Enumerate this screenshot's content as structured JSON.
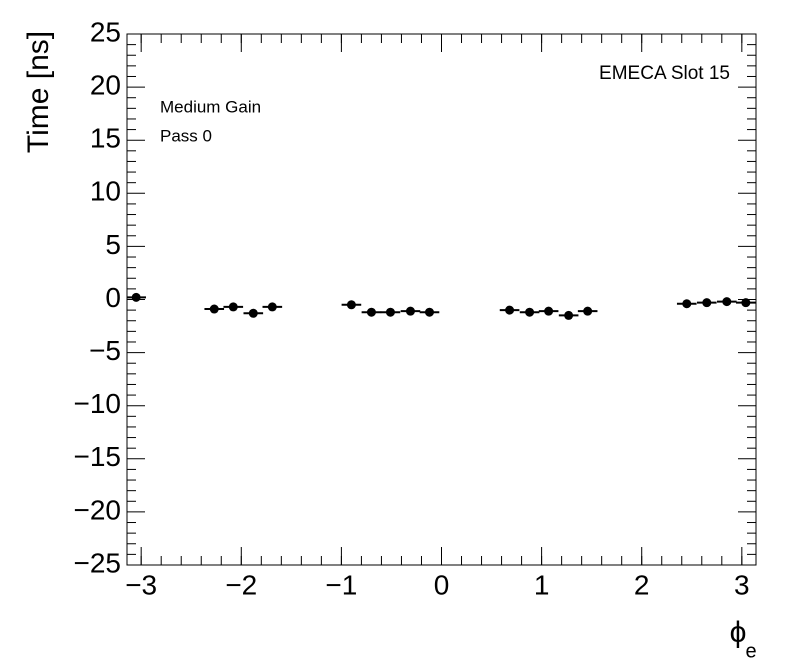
{
  "chart_data": {
    "type": "scatter",
    "title": "EMECA Slot 15",
    "annotations": [
      "Medium Gain",
      "Pass 0"
    ],
    "xlabel": {
      "symbol": "ϕ",
      "subscript": "e"
    },
    "ylabel": "Time [ns]",
    "x": [
      -3.05,
      -2.27,
      -2.08,
      -1.88,
      -1.69,
      -0.9,
      -0.7,
      -0.51,
      -0.31,
      -0.12,
      0.68,
      0.88,
      1.07,
      1.27,
      1.46,
      2.45,
      2.65,
      2.85,
      3.04
    ],
    "x_error": 0.098,
    "series": [
      {
        "name": "Time",
        "color": "#000000",
        "values": [
          0.2,
          -0.9,
          -0.7,
          -1.3,
          -0.7,
          -0.5,
          -1.2,
          -1.2,
          -1.1,
          -1.2,
          -1.0,
          -1.2,
          -1.1,
          -1.5,
          -1.1,
          -0.4,
          -0.3,
          -0.2,
          -0.3
        ]
      }
    ],
    "xlim": [
      -3.1416,
      3.1416
    ],
    "ylim": [
      -25,
      25
    ],
    "xticks": [
      {
        "value": -3,
        "label": "−3"
      },
      {
        "value": -2,
        "label": "−2"
      },
      {
        "value": -1,
        "label": "−1"
      },
      0,
      1,
      2,
      3
    ],
    "yticks": [
      {
        "value": -25,
        "label": "−25"
      },
      {
        "value": -20,
        "label": "−20"
      },
      {
        "value": -15,
        "label": "−15"
      },
      {
        "value": -10,
        "label": "−10"
      },
      {
        "value": -5,
        "label": "−5"
      },
      0,
      5,
      10,
      15,
      20,
      25
    ]
  }
}
